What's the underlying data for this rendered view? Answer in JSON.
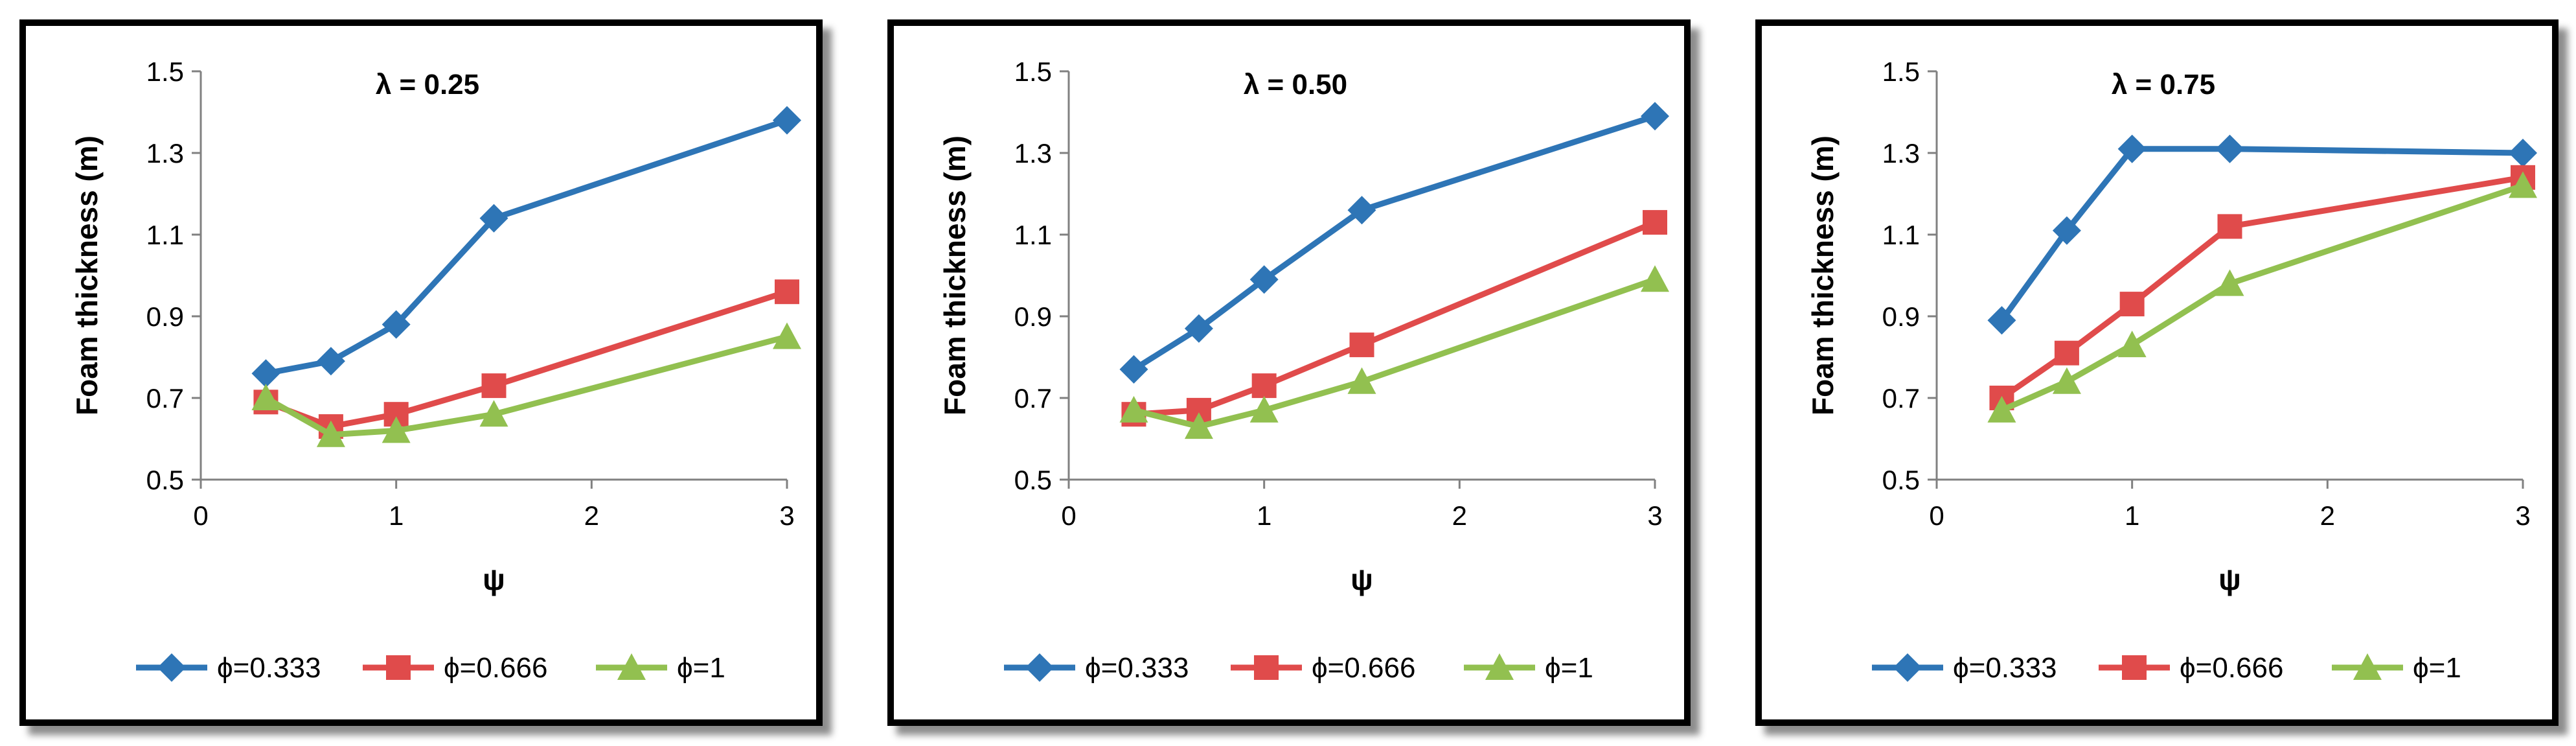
{
  "chart_data": [
    {
      "type": "line",
      "title": "λ = 0.25",
      "xlabel": "ψ",
      "ylabel": "Foam thickness (m)",
      "xlim": [
        0,
        3
      ],
      "ylim": [
        0.5,
        1.5
      ],
      "xticks": [
        "0",
        "1",
        "2",
        "3"
      ],
      "yticks": [
        "0.5",
        "0.7",
        "0.9",
        "1.1",
        "1.3",
        "1.5"
      ],
      "legend_position": "bottom",
      "x": [
        0.333,
        0.666,
        1,
        1.5,
        3
      ],
      "series": [
        {
          "name": "ϕ=0.333",
          "color": "#2E75B6",
          "marker": "diamond",
          "values": [
            0.76,
            0.79,
            0.88,
            1.14,
            1.38
          ]
        },
        {
          "name": "ϕ=0.666",
          "color": "#E04B4B",
          "marker": "square",
          "values": [
            0.69,
            0.63,
            0.66,
            0.73,
            0.96
          ]
        },
        {
          "name": "ϕ=1",
          "color": "#92C050",
          "marker": "triangle",
          "values": [
            0.7,
            0.61,
            0.62,
            0.66,
            0.85
          ]
        }
      ]
    },
    {
      "type": "line",
      "title": "λ = 0.50",
      "xlabel": "ψ",
      "ylabel": "Foam thickness (m)",
      "xlim": [
        0,
        3
      ],
      "ylim": [
        0.5,
        1.5
      ],
      "xticks": [
        "0",
        "1",
        "2",
        "3"
      ],
      "yticks": [
        "0.5",
        "0.7",
        "0.9",
        "1.1",
        "1.3",
        "1.5"
      ],
      "legend_position": "bottom",
      "x": [
        0.333,
        0.666,
        1,
        1.5,
        3
      ],
      "series": [
        {
          "name": "ϕ=0.333",
          "color": "#2E75B6",
          "marker": "diamond",
          "values": [
            0.77,
            0.87,
            0.99,
            1.16,
            1.39
          ]
        },
        {
          "name": "ϕ=0.666",
          "color": "#E04B4B",
          "marker": "square",
          "values": [
            0.66,
            0.67,
            0.73,
            0.83,
            1.13
          ]
        },
        {
          "name": "ϕ=1",
          "color": "#92C050",
          "marker": "triangle",
          "values": [
            0.67,
            0.63,
            0.67,
            0.74,
            0.99
          ]
        }
      ]
    },
    {
      "type": "line",
      "title": "λ = 0.75",
      "xlabel": "ψ",
      "ylabel": "Foam thickness (m)",
      "xlim": [
        0,
        3
      ],
      "ylim": [
        0.5,
        1.5
      ],
      "xticks": [
        "0",
        "1",
        "2",
        "3"
      ],
      "yticks": [
        "0.5",
        "0.7",
        "0.9",
        "1.1",
        "1.3",
        "1.5"
      ],
      "legend_position": "bottom",
      "x": [
        0.333,
        0.666,
        1,
        1.5,
        3
      ],
      "series": [
        {
          "name": "ϕ=0.333",
          "color": "#2E75B6",
          "marker": "diamond",
          "values": [
            0.89,
            1.11,
            1.31,
            1.31,
            1.3
          ]
        },
        {
          "name": "ϕ=0.666",
          "color": "#E04B4B",
          "marker": "square",
          "values": [
            0.7,
            0.81,
            0.93,
            1.12,
            1.24
          ]
        },
        {
          "name": "ϕ=1",
          "color": "#92C050",
          "marker": "triangle",
          "values": [
            0.67,
            0.74,
            0.83,
            0.98,
            1.22
          ]
        }
      ]
    }
  ]
}
